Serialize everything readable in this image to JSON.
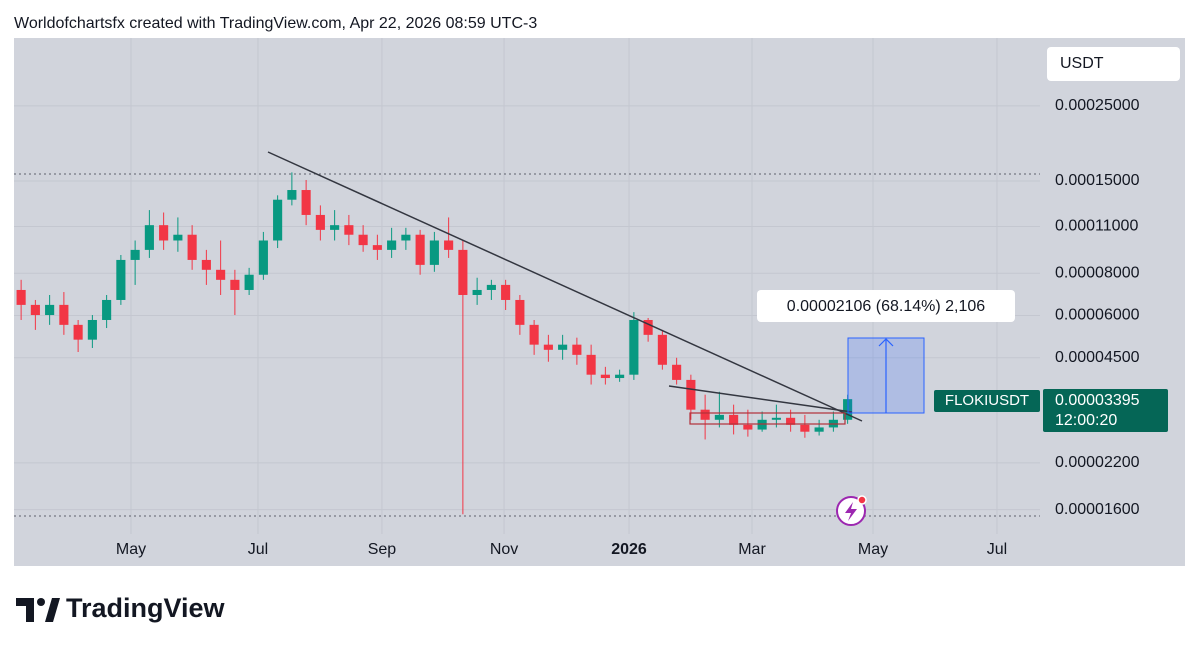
{
  "header": "Worldofchartsfx created with TradingView.com, Apr 22, 2026 08:59 UTC-3",
  "currency": "USDT",
  "measure_label": "0.00002106 (68.14%) 2,106",
  "symbol": "FLOKIUSDT",
  "last_price_label": "0.00003395",
  "countdown": "12:00:20",
  "brand": "TradingView",
  "chart_data": {
    "type": "candlestick",
    "up_color": "#089981",
    "down_color": "#f23645",
    "log_scale": true,
    "grid": true,
    "categories": [
      null,
      null,
      null,
      null,
      null,
      null,
      null,
      null,
      null,
      null,
      null,
      null,
      null,
      null,
      null,
      null,
      null,
      null,
      null,
      null,
      null,
      null,
      null,
      null,
      null,
      null,
      null,
      null,
      null,
      null,
      null,
      null,
      null,
      null,
      null,
      null,
      null,
      null,
      null,
      null,
      null,
      null,
      null,
      null,
      null,
      null,
      null,
      null,
      null,
      null,
      null,
      null,
      null,
      null,
      null,
      null,
      null,
      null,
      null
    ],
    "open": [
      7.14e-05,
      6.45e-05,
      6.02e-05,
      6.45e-05,
      5.63e-05,
      5.09e-05,
      5.82e-05,
      6.67e-05,
      8.76e-05,
      9.38e-05,
      0.000111,
      0.0001,
      0.000104,
      8.76e-05,
      8.19e-05,
      7.65e-05,
      7.14e-05,
      7.92e-05,
      0.0001,
      0.000132,
      0.000141,
      0.000119,
      0.0001075,
      0.000111,
      0.000104,
      9.69e-05,
      9.38e-05,
      0.0001,
      0.000104,
      8.47e-05,
      0.0001,
      9.38e-05,
      6.9e-05,
      7.14e-05,
      7.39e-05,
      6.67e-05,
      5.63e-05,
      4.92e-05,
      4.75e-05,
      4.92e-05,
      4.59e-05,
      4.01e-05,
      3.92e-05,
      4.01e-05,
      5.82e-05,
      5.26e-05,
      4.29e-05,
      3.87e-05,
      3.16e-05,
      2.95e-05,
      3.05e-05,
      2.85e-05,
      2.76e-05,
      2.95e-05,
      2.99e-05,
      2.85e-05,
      2.72e-05,
      2.8e-05,
      2.95e-05
    ],
    "high": [
      7.65e-05,
      6.67e-05,
      6.9e-05,
      7.04e-05,
      5.82e-05,
      6.02e-05,
      6.9e-05,
      9.06e-05,
      0.0001,
      0.000123,
      0.000121,
      0.000117,
      0.000111,
      9.38e-05,
      0.0001,
      8.19e-05,
      8.3e-05,
      0.000106,
      0.000136,
      0.000159,
      0.000151,
      0.000127,
      0.000123,
      0.000119,
      0.000111,
      0.000104,
      0.000109,
      0.000109,
      0.0001075,
      0.000106,
      0.000117,
      0.0001,
      7.76e-05,
      7.65e-05,
      7.65e-05,
      6.9e-05,
      5.82e-05,
      5.26e-05,
      5.26e-05,
      5.16e-05,
      4.92e-05,
      4.23e-05,
      4.15e-05,
      6.14e-05,
      5.9e-05,
      5.44e-05,
      4.5e-05,
      4.01e-05,
      3.5e-05,
      3.57e-05,
      3.27e-05,
      3.16e-05,
      3.12e-05,
      3.27e-05,
      3.16e-05,
      3.05e-05,
      2.95e-05,
      3.12e-05,
      3.5e-05
    ],
    "low": [
      5.82e-05,
      5.44e-05,
      5.63e-05,
      5.26e-05,
      4.68e-05,
      4.81e-05,
      5.51e-05,
      6.45e-05,
      7.39e-05,
      8.88e-05,
      9.38e-05,
      9.26e-05,
      8.19e-05,
      7.39e-05,
      6.9e-05,
      6.02e-05,
      6.9e-05,
      7.65e-05,
      9.5e-05,
      0.000127,
      0.000111,
      0.0001,
      0.0001,
      9.69e-05,
      9.26e-05,
      8.76e-05,
      8.88e-05,
      9.38e-05,
      7.92e-05,
      8.08e-05,
      8.88e-05,
      1.55e-05,
      6.45e-05,
      6.67e-05,
      6.23e-05,
      5.26e-05,
      4.59e-05,
      4.38e-05,
      4.44e-05,
      4.29e-05,
      3.75e-05,
      3.75e-05,
      3.82e-05,
      3.87e-05,
      5.02e-05,
      4.15e-05,
      3.75e-05,
      2.95e-05,
      2.58e-05,
      2.8e-05,
      2.67e-05,
      2.63e-05,
      2.72e-05,
      2.8e-05,
      2.72e-05,
      2.61e-05,
      2.65e-05,
      2.72e-05,
      2.87e-05
    ],
    "close": [
      6.45e-05,
      6.02e-05,
      6.45e-05,
      5.63e-05,
      5.09e-05,
      5.82e-05,
      6.67e-05,
      8.76e-05,
      9.38e-05,
      0.000111,
      0.0001,
      0.000104,
      8.76e-05,
      8.19e-05,
      7.65e-05,
      7.14e-05,
      7.92e-05,
      0.0001,
      0.000132,
      0.000141,
      0.000119,
      0.0001075,
      0.000111,
      0.000104,
      9.69e-05,
      9.38e-05,
      0.0001,
      0.000104,
      8.47e-05,
      0.0001,
      9.38e-05,
      6.9e-05,
      7.14e-05,
      7.39e-05,
      6.67e-05,
      5.63e-05,
      4.92e-05,
      4.75e-05,
      4.92e-05,
      4.59e-05,
      4.01e-05,
      3.92e-05,
      4.01e-05,
      5.82e-05,
      5.26e-05,
      4.29e-05,
      3.87e-05,
      3.16e-05,
      2.95e-05,
      3.05e-05,
      2.85e-05,
      2.76e-05,
      2.95e-05,
      2.99e-05,
      2.85e-05,
      2.72e-05,
      2.8e-05,
      2.95e-05,
      3.395e-05
    ],
    "xlim": [
      -0.5,
      71.5
    ],
    "xticks": [
      {
        "value": 7.71,
        "label": "May"
      },
      {
        "value": 16.62,
        "label": "Jul"
      },
      {
        "value": 25.32,
        "label": "Sep"
      },
      {
        "value": 33.89,
        "label": "Nov"
      },
      {
        "value": 42.66,
        "label": "2026"
      },
      {
        "value": 51.29,
        "label": "Mar"
      },
      {
        "value": 59.78,
        "label": "May"
      },
      {
        "value": 68.48,
        "label": "Jul"
      }
    ],
    "ylim": [
      1.09e-05,
      0.000397
    ],
    "yticks": [
      {
        "value": 0.00025,
        "label": "0.00025000"
      },
      {
        "value": 0.00015,
        "label": "0.00015000"
      },
      {
        "value": 0.00011,
        "label": "0.00011000"
      },
      {
        "value": 8e-05,
        "label": "0.00008000"
      },
      {
        "value": 6e-05,
        "label": "0.00006000"
      },
      {
        "value": 4.5e-05,
        "label": "0.00004500"
      },
      {
        "value": 2.2e-05,
        "label": "0.00002200"
      },
      {
        "value": 1.6e-05,
        "label": "0.00001600"
      }
    ]
  }
}
